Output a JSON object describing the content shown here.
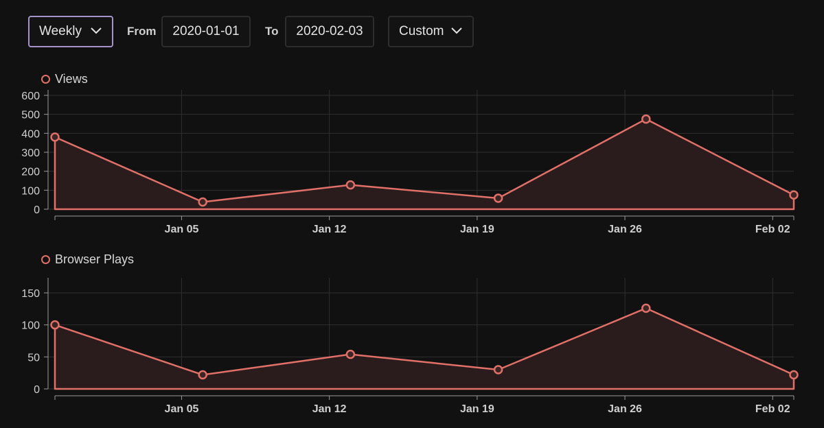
{
  "toolbar": {
    "interval": "Weekly",
    "from_label": "From",
    "from_value": "2020-01-01",
    "to_label": "To",
    "to_value": "2020-02-03",
    "range": "Custom"
  },
  "colors": {
    "line": "#e07068",
    "fill": "#2a1c1c",
    "grid": "#2f2f2f",
    "axis": "#9a9a9a"
  },
  "chart_data": [
    {
      "type": "area",
      "title": "",
      "legend": "Views",
      "x": [
        "2019-12-30",
        "2020-01-06",
        "2020-01-13",
        "2020-01-20",
        "2020-01-27",
        "2020-02-03"
      ],
      "values": [
        380,
        38,
        128,
        58,
        475,
        75
      ],
      "xticks": [
        "Jan 05",
        "Jan 12",
        "Jan 19",
        "Jan 26",
        "Feb 02"
      ],
      "xtick_dates": [
        "2020-01-05",
        "2020-01-12",
        "2020-01-19",
        "2020-01-26",
        "2020-02-02"
      ],
      "yticks": [
        0,
        100,
        200,
        300,
        400,
        500,
        600
      ],
      "ylim": [
        0,
        600
      ],
      "grid": true
    },
    {
      "type": "area",
      "title": "",
      "legend": "Browser Plays",
      "x": [
        "2019-12-30",
        "2020-01-06",
        "2020-01-13",
        "2020-01-20",
        "2020-01-27",
        "2020-02-03"
      ],
      "values": [
        100,
        22,
        54,
        30,
        126,
        22
      ],
      "xticks": [
        "Jan 05",
        "Jan 12",
        "Jan 19",
        "Jan 26",
        "Feb 02"
      ],
      "xtick_dates": [
        "2020-01-05",
        "2020-01-12",
        "2020-01-19",
        "2020-01-26",
        "2020-02-02"
      ],
      "yticks": [
        0,
        50,
        100,
        150
      ],
      "ylim": [
        0,
        165
      ],
      "grid": true
    }
  ]
}
